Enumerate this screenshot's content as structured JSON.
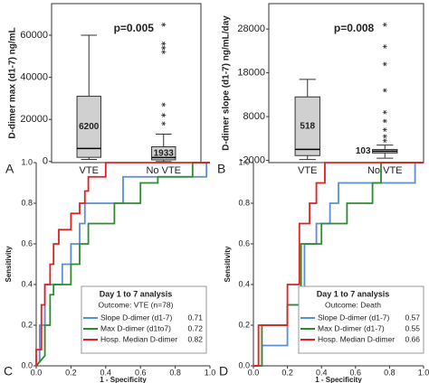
{
  "chart_data": [
    {
      "type": "box",
      "panel": "A",
      "ylabel": "D-dimer max (d1-7) ng/mL",
      "annotation": "p=0.005",
      "categories": [
        "VTE",
        "No VTE"
      ],
      "boxes": [
        {
          "min": 1000,
          "q1": 2000,
          "median": 6200,
          "q3": 31000,
          "max": 60000,
          "outliers": []
        },
        {
          "min": 0,
          "q1": 800,
          "median": 1933,
          "q3": 7000,
          "max": 13000,
          "outliers": [
            18000,
            22000,
            27000,
            52000,
            54000,
            56000,
            65000
          ]
        }
      ],
      "ylim": [
        -500,
        75000
      ],
      "yticks": [
        0,
        20000,
        40000,
        60000
      ]
    },
    {
      "type": "box",
      "panel": "B",
      "ylabel": "D-dimer slope (d1-7) ng/mL/day",
      "annotation": "p=0.008",
      "categories": [
        "VTE",
        "No VTE"
      ],
      "boxes": [
        {
          "min": -1800,
          "q1": -900,
          "median": 518,
          "q3": 12500,
          "max": 16500,
          "outliers": []
        },
        {
          "min": -1500,
          "q1": -300,
          "median": 103,
          "q3": 500,
          "max": 1500,
          "outliers": [
            2500,
            3500,
            5000,
            7000,
            9000,
            14000,
            20000,
            24000,
            29000
          ]
        }
      ],
      "ylim": [
        -2500,
        33800
      ],
      "yticks": [
        -2000,
        8000,
        18000,
        28000
      ]
    },
    {
      "type": "roc",
      "panel": "C",
      "xlabel": "1 - Specificity",
      "ylabel": "Sensitivity",
      "legend_title": "Day 1 to 7 analysis",
      "legend_subtitle": "Outcome: VTE (n=78)",
      "xlim": [
        0,
        1
      ],
      "ylim": [
        0,
        1
      ],
      "xticks": [
        {
          "value": 0,
          "label": "0.0"
        },
        {
          "value": 0.2,
          "label": "0.2"
        },
        {
          "value": 0.4,
          "label": "0.4"
        },
        {
          "value": 0.6,
          "label": "0.6"
        },
        {
          "value": 0.8,
          "label": "0.8"
        },
        {
          "value": 1,
          "label": "1.0"
        }
      ],
      "yticks": [
        {
          "value": 0,
          "label": "0.0"
        },
        {
          "value": 0.2,
          "label": "0.2"
        },
        {
          "value": 0.4,
          "label": "0.4"
        },
        {
          "value": 0.6,
          "label": "0.6"
        },
        {
          "value": 0.8,
          "label": "0.8"
        },
        {
          "value": 1,
          "label": "1.0"
        }
      ],
      "series": [
        {
          "name": "Slope D-dimer (d1-7)",
          "auc": 0.71,
          "color": "#5b8ed6",
          "x": [
            0,
            0.02,
            0.02,
            0.05,
            0.05,
            0.15,
            0.15,
            0.2,
            0.2,
            0.25,
            0.25,
            0.28,
            0.28,
            0.5,
            0.5,
            0.98,
            0.98,
            1
          ],
          "y": [
            0,
            0.02,
            0.2,
            0.2,
            0.4,
            0.4,
            0.5,
            0.5,
            0.6,
            0.6,
            0.7,
            0.7,
            0.8,
            0.8,
            0.93,
            0.93,
            1,
            1
          ]
        },
        {
          "name": "Max D-dimer (d1to7)",
          "auc": 0.72,
          "color": "#2e8b2e",
          "x": [
            0,
            0.05,
            0.05,
            0.08,
            0.08,
            0.1,
            0.1,
            0.2,
            0.2,
            0.25,
            0.25,
            0.3,
            0.3,
            0.45,
            0.45,
            0.6,
            0.6,
            0.7,
            0.7,
            0.9,
            0.9,
            1
          ],
          "y": [
            0,
            0.05,
            0.2,
            0.2,
            0.35,
            0.35,
            0.4,
            0.4,
            0.5,
            0.5,
            0.6,
            0.6,
            0.7,
            0.7,
            0.8,
            0.8,
            0.9,
            0.9,
            0.93,
            0.93,
            1,
            1
          ]
        },
        {
          "name": "Hosp. Median D-dimer",
          "auc": 0.82,
          "color": "#e02020",
          "x": [
            0,
            0,
            0.03,
            0.03,
            0.05,
            0.05,
            0.08,
            0.08,
            0.1,
            0.1,
            0.13,
            0.13,
            0.2,
            0.2,
            0.25,
            0.25,
            0.28,
            0.28,
            0.3,
            0.3,
            0.4,
            0.4,
            1
          ],
          "y": [
            0,
            0.08,
            0.08,
            0.3,
            0.3,
            0.4,
            0.4,
            0.5,
            0.5,
            0.6,
            0.6,
            0.67,
            0.67,
            0.75,
            0.75,
            0.8,
            0.8,
            0.86,
            0.86,
            0.93,
            0.93,
            1,
            1
          ]
        }
      ]
    },
    {
      "type": "roc",
      "panel": "D",
      "xlabel": "1 - Specificity",
      "ylabel": "Sensitivity",
      "legend_title": "Day 1 to 7 analysis",
      "legend_subtitle": "Outcome: Death",
      "xlim": [
        0,
        1
      ],
      "ylim": [
        0,
        1
      ],
      "xticks": [
        {
          "value": 0,
          "label": "0.0"
        },
        {
          "value": 0.2,
          "label": "0.2"
        },
        {
          "value": 0.4,
          "label": "0.4"
        },
        {
          "value": 0.6,
          "label": "0.6"
        },
        {
          "value": 0.8,
          "label": "0.8"
        },
        {
          "value": 1,
          "label": "1.0"
        }
      ],
      "yticks": [
        {
          "value": 0,
          "label": "0.0"
        },
        {
          "value": 0.2,
          "label": "0.2"
        },
        {
          "value": 0.4,
          "label": "0.4"
        },
        {
          "value": 0.6,
          "label": "0.6"
        },
        {
          "value": 0.8,
          "label": "0.8"
        },
        {
          "value": 1,
          "label": "1.0"
        }
      ],
      "series": [
        {
          "name": "Slope D-dimer (d1-7)",
          "auc": 0.57,
          "color": "#5b8ed6",
          "x": [
            0,
            0.05,
            0.05,
            0.2,
            0.2,
            0.3,
            0.3,
            0.37,
            0.37,
            0.45,
            0.45,
            0.5,
            0.5,
            0.95,
            0.95,
            1
          ],
          "y": [
            0,
            0,
            0.1,
            0.1,
            0.3,
            0.3,
            0.6,
            0.6,
            0.7,
            0.7,
            0.8,
            0.8,
            0.9,
            0.9,
            1,
            1
          ]
        },
        {
          "name": "Max D-dimer (d1-7)",
          "auc": 0.55,
          "color": "#2e8b2e",
          "x": [
            0,
            0.05,
            0.05,
            0.2,
            0.2,
            0.28,
            0.28,
            0.4,
            0.4,
            0.55,
            0.55,
            0.7,
            0.7,
            0.75,
            0.75,
            1
          ],
          "y": [
            0,
            0,
            0.2,
            0.2,
            0.3,
            0.3,
            0.6,
            0.6,
            0.7,
            0.7,
            0.8,
            0.8,
            0.9,
            0.9,
            1,
            1
          ]
        },
        {
          "name": "Hosp. Median D-dimer",
          "auc": 0.66,
          "color": "#e02020",
          "x": [
            0,
            0.03,
            0.03,
            0.2,
            0.2,
            0.27,
            0.27,
            0.33,
            0.33,
            0.37,
            0.37,
            0.42,
            0.42,
            1
          ],
          "y": [
            0,
            0,
            0.2,
            0.2,
            0.4,
            0.4,
            0.7,
            0.7,
            0.8,
            0.8,
            0.9,
            0.9,
            1,
            1
          ]
        }
      ]
    }
  ]
}
